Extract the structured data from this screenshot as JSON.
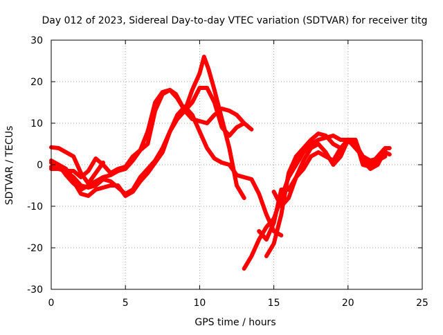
{
  "chart_data": {
    "type": "line",
    "title": "Day 012 of 2023, Sidereal Day-to-day VTEC variation (SDTVAR) for receiver titg",
    "xlabel": "GPS time / hours",
    "ylabel": "SDTVAR / TECUs",
    "xlim": [
      0,
      25
    ],
    "ylim": [
      -30,
      30
    ],
    "xticks": [
      0,
      5,
      10,
      15,
      20,
      25
    ],
    "yticks": [
      -30,
      -20,
      -10,
      0,
      10,
      20,
      30
    ],
    "grid": true,
    "color": "#ff0000",
    "series": [
      {
        "x": [
          0,
          0.5,
          1.0,
          1.5,
          2.0,
          2.5,
          3.0,
          3.5
        ],
        "y": [
          4.2,
          4.0,
          3.0,
          2.0,
          -2.0,
          -4.5,
          -2.0,
          0.5
        ]
      },
      {
        "x": [
          0,
          0.5,
          1.0,
          1.5,
          2.0,
          2.5,
          3.0,
          3.5,
          4.0,
          4.5,
          5.0,
          5.5,
          6.0,
          6.5,
          7.0,
          7.5,
          8.0,
          8.4,
          9.0,
          9.5,
          10.0,
          10.5,
          11.0,
          11.5,
          12.0,
          12.5,
          13.0
        ],
        "y": [
          -1.0,
          -1.0,
          -1.5,
          -1.5,
          -3.0,
          -1.5,
          1.5,
          0.0,
          -2.0,
          -1.0,
          -0.5,
          2.0,
          3.5,
          5.0,
          13.0,
          17.0,
          18.0,
          17.0,
          13.0,
          11.0,
          10.5,
          10.0,
          12.0,
          13.5,
          13.0,
          12.0,
          10.0
        ]
      },
      {
        "x": [
          0,
          0.5,
          1.0,
          1.5,
          2.0,
          2.5,
          3.0,
          3.5,
          4.0,
          4.5,
          5.0,
          5.5,
          6.0,
          6.5,
          7.0,
          7.5,
          8.0,
          8.5,
          9.0,
          9.5,
          10.0,
          10.3,
          10.6,
          11.0,
          11.5,
          12.0,
          12.5,
          13.0
        ],
        "y": [
          0.5,
          0.0,
          -2.5,
          -4.5,
          -6.0,
          -5.0,
          -4.0,
          -3.0,
          -2.5,
          -1.5,
          -1.0,
          1.0,
          3.5,
          8.0,
          15.0,
          17.5,
          18.0,
          16.0,
          13.0,
          18.0,
          22.0,
          26.0,
          23.0,
          18.0,
          11.0,
          4.0,
          -5.0,
          -8.0
        ]
      },
      {
        "x": [
          0,
          0.5,
          1.0,
          1.5,
          2.0,
          2.5,
          3.0,
          3.5,
          4.0,
          4.5,
          5.0,
          5.5,
          6.0,
          6.5,
          7.0,
          7.5,
          8.0,
          8.5,
          9.0,
          9.5,
          10.0,
          10.5,
          11.0,
          11.5,
          12.0,
          12.5,
          13.0,
          13.5,
          14.0,
          14.5,
          15.0,
          15.5
        ],
        "y": [
          -0.5,
          -1.0,
          -1.5,
          -3.0,
          -5.0,
          -5.5,
          -5.0,
          -3.5,
          -4.0,
          -5.5,
          -7.0,
          -6.0,
          -3.0,
          -1.0,
          1.0,
          4.0,
          8.0,
          12.0,
          14.0,
          12.0,
          8.0,
          4.0,
          1.5,
          0.5,
          0.0,
          -2.5,
          -3.0,
          -3.5,
          -7.0,
          -12.0,
          -16.0,
          -17.0
        ]
      },
      {
        "x": [
          0,
          0.5,
          1.0,
          1.5,
          2.0,
          2.5,
          3.0,
          3.5,
          4.0,
          4.5,
          5.0,
          5.5,
          6.0,
          6.5,
          7.0,
          7.5,
          8.0,
          8.5,
          9.0,
          9.5,
          10.0,
          10.5,
          11.0,
          11.5,
          12.0,
          12.5,
          13.0,
          13.5
        ],
        "y": [
          1.0,
          0.0,
          -1.0,
          -4.0,
          -7.0,
          -7.5,
          -6.0,
          -5.5,
          -5.0,
          -5.0,
          -7.5,
          -6.5,
          -4.0,
          -2.0,
          0.5,
          3.0,
          8.0,
          11.0,
          13.0,
          15.0,
          18.5,
          18.5,
          15.0,
          9.0,
          7.0,
          9.0,
          10.0,
          8.5
        ]
      },
      {
        "x": [
          13.0,
          13.5,
          14.0,
          14.5,
          15.0,
          15.5,
          16.0,
          16.5,
          17.0,
          17.5,
          18.0,
          18.5,
          19.0,
          19.5,
          20.0,
          20.5,
          21.0,
          21.5,
          22.0,
          22.5,
          22.8
        ],
        "y": [
          -25.0,
          -22.0,
          -18.0,
          -15.0,
          -13.0,
          -8.0,
          -3.0,
          0.0,
          3.0,
          5.0,
          6.0,
          6.5,
          7.0,
          6.0,
          6.0,
          4.0,
          2.0,
          1.0,
          1.5,
          3.0,
          2.5
        ]
      },
      {
        "x": [
          14.5,
          15.0,
          15.5,
          16.0,
          16.5,
          17.0,
          17.5,
          18.0,
          18.5,
          19.0,
          19.5,
          20.0,
          20.5,
          21.0,
          21.5,
          22.0,
          22.5,
          22.8
        ],
        "y": [
          -22.0,
          -19.0,
          -12.0,
          -2.0,
          2.0,
          4.0,
          6.0,
          7.5,
          7.0,
          5.0,
          4.0,
          5.5,
          5.0,
          2.0,
          0.0,
          2.0,
          4.0,
          4.0
        ]
      },
      {
        "x": [
          14.0,
          14.5,
          15.0,
          15.5,
          16.0,
          16.5,
          17.0,
          17.5,
          18.0,
          18.5,
          19.0,
          19.5,
          20.0,
          20.5,
          21.0,
          21.5,
          22.0,
          22.5
        ],
        "y": [
          -16.0,
          -18.0,
          -14.0,
          -6.0,
          -6.0,
          -3.0,
          -1.0,
          2.0,
          3.0,
          2.0,
          1.0,
          4.0,
          6.0,
          6.0,
          0.0,
          -0.5,
          1.0,
          2.0
        ]
      },
      {
        "x": [
          15.0,
          15.5,
          16.0,
          16.5,
          17.0,
          17.5,
          18.0,
          18.5,
          19.0,
          19.5,
          20.0,
          20.5,
          21.0,
          21.5,
          22.0,
          22.5
        ],
        "y": [
          -6.5,
          -10.0,
          -8.0,
          -3.0,
          1.0,
          4.0,
          5.0,
          3.0,
          0.0,
          2.0,
          6.0,
          6.0,
          1.0,
          -1.0,
          0.0,
          3.5
        ]
      }
    ]
  }
}
